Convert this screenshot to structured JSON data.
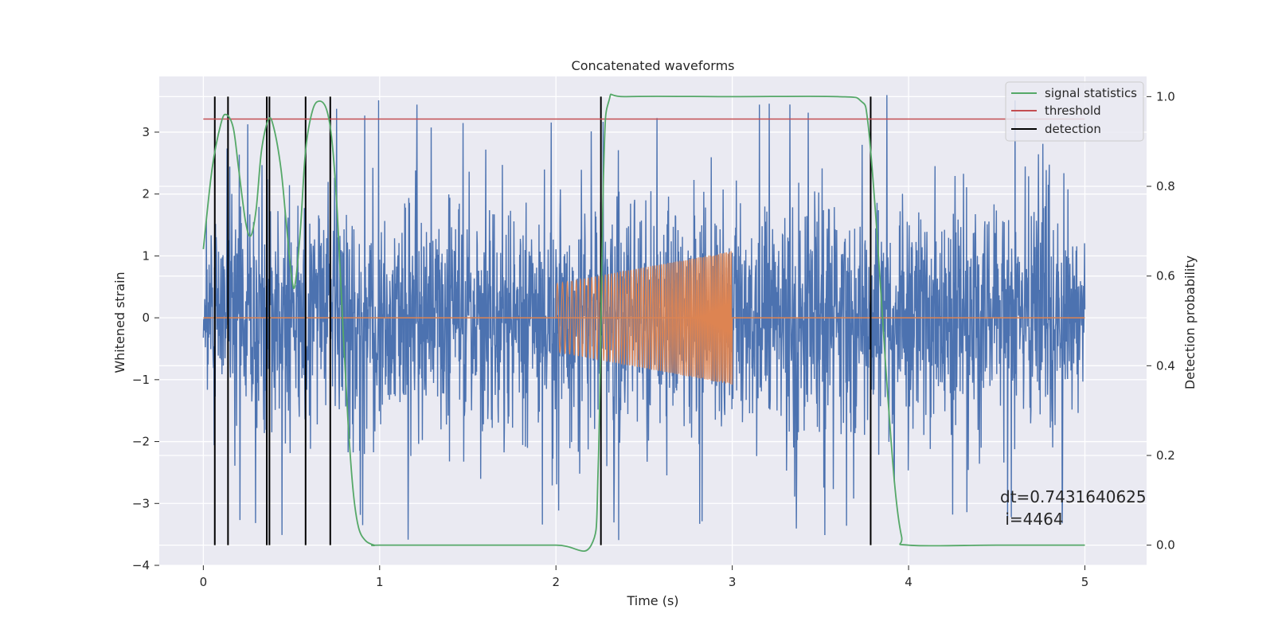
{
  "chart_data": {
    "type": "line",
    "title": "Concatenated waveforms",
    "xlabel": "Time (s)",
    "ylabel": "Whitened strain",
    "y2label": "Detection probability",
    "xlim": [
      -0.25,
      5.35
    ],
    "ylim": [
      -4.0,
      3.9
    ],
    "y2lim": [
      -0.045,
      1.045
    ],
    "xticks": [
      0,
      1,
      2,
      3,
      4,
      5
    ],
    "yticks": [
      -4,
      -3,
      -2,
      -1,
      0,
      1,
      2,
      3
    ],
    "y2ticks": [
      0.0,
      0.2,
      0.4,
      0.6,
      0.8,
      1.0
    ],
    "xtick_labels": [
      "0",
      "1",
      "2",
      "3",
      "4",
      "5"
    ],
    "ytick_labels": [
      "−4",
      "−3",
      "−2",
      "−1",
      "0",
      "1",
      "2",
      "3"
    ],
    "y2tick_labels": [
      "0.0",
      "0.2",
      "0.4",
      "0.6",
      "0.8",
      "1.0"
    ],
    "grid": true,
    "legend_position": "top-right",
    "colors": {
      "strain": "#4c72b0",
      "injection": "#dd8452",
      "signal_statistics": "#55a868",
      "threshold": "#c44e52",
      "detection": "#000000",
      "background": "#eaeaf2",
      "grid": "#ffffff"
    },
    "series": [
      {
        "name": "whitened strain",
        "axis": "left",
        "description": "noise time series, 0 to 5 s, amplitude mostly within about ±2.5 with spikes to about ±3.6",
        "x_range": [
          0,
          5
        ],
        "typical_envelope": 2.3,
        "peak_abs": 3.6
      },
      {
        "name": "injected waveform",
        "axis": "left",
        "description": "chirp between 2 s and 3 s, zero elsewhere",
        "x_range": [
          2.0,
          3.0
        ],
        "amplitude_start": 0.55,
        "amplitude_end": 1.08
      },
      {
        "name": "signal statistics",
        "axis": "right",
        "x": [
          0.0,
          0.05,
          0.1,
          0.13,
          0.17,
          0.2,
          0.24,
          0.27,
          0.3,
          0.33,
          0.37,
          0.4,
          0.44,
          0.47,
          0.5,
          0.52,
          0.55,
          0.58,
          0.62,
          0.66,
          0.7,
          0.73,
          0.76,
          0.79,
          0.82,
          0.85,
          0.88,
          0.92,
          0.97,
          1.0,
          1.5,
          2.0,
          2.2,
          2.24,
          2.27,
          2.3,
          2.4,
          3.0,
          3.6,
          3.73,
          3.77,
          3.82,
          3.87,
          3.92,
          3.96,
          4.0,
          4.5,
          5.0
        ],
        "y": [
          0.66,
          0.84,
          0.94,
          0.96,
          0.93,
          0.84,
          0.72,
          0.69,
          0.75,
          0.88,
          0.95,
          0.93,
          0.84,
          0.72,
          0.6,
          0.58,
          0.7,
          0.88,
          0.97,
          0.99,
          0.97,
          0.9,
          0.74,
          0.5,
          0.28,
          0.12,
          0.04,
          0.01,
          0.0,
          0.0,
          0.0,
          0.0,
          0.0,
          0.18,
          0.83,
          0.99,
          1.0,
          1.0,
          1.0,
          0.99,
          0.94,
          0.7,
          0.4,
          0.14,
          0.02,
          0.0,
          0.0,
          0.0
        ]
      },
      {
        "name": "threshold",
        "axis": "right",
        "x": [
          0,
          5
        ],
        "y": [
          0.95,
          0.95
        ]
      }
    ],
    "detections": {
      "name": "detection",
      "axis": "right",
      "x": [
        0.065,
        0.14,
        0.36,
        0.375,
        0.58,
        0.72,
        2.255,
        3.785
      ],
      "y_range": [
        0.0,
        1.0
      ]
    },
    "legend": [
      "signal statistics",
      "threshold",
      "detection"
    ],
    "annotation": {
      "line1": "dt=0.7431640625",
      "line2": " i=4464"
    }
  }
}
